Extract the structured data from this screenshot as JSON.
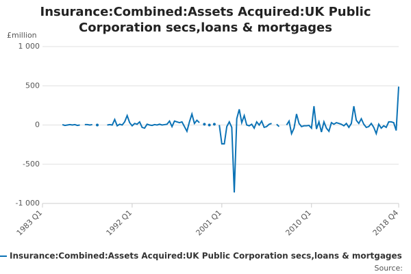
{
  "chart_data": {
    "type": "line",
    "title": "Insurance:Combined:Assets Acquired:UK Public Corporation secs,loans & mortgages",
    "y_label": "£million",
    "source": "Source:",
    "categories": [
      "1983 Q1",
      null,
      null,
      null,
      null,
      null,
      null,
      null,
      null,
      null,
      null,
      null,
      null,
      null,
      null,
      null,
      null,
      null,
      null,
      null,
      null,
      null,
      null,
      null,
      null,
      null,
      null,
      null,
      null,
      null,
      null,
      null,
      null,
      null,
      null,
      null,
      "1992 Q1",
      null,
      null,
      null,
      null,
      null,
      null,
      null,
      null,
      null,
      null,
      null,
      null,
      null,
      null,
      null,
      null,
      null,
      null,
      null,
      null,
      null,
      null,
      null,
      null,
      null,
      null,
      null,
      null,
      null,
      null,
      null,
      null,
      null,
      null,
      null,
      "2001 Q1",
      null,
      null,
      null,
      null,
      null,
      null,
      null,
      null,
      null,
      null,
      null,
      null,
      null,
      null,
      null,
      null,
      null,
      null,
      null,
      null,
      null,
      null,
      null,
      null,
      null,
      null,
      null,
      null,
      null,
      null,
      null,
      null,
      null,
      null,
      null,
      "2010 Q1",
      null,
      null,
      null,
      null,
      null,
      null,
      null,
      null,
      null,
      null,
      null,
      null,
      null,
      null,
      null,
      null,
      null,
      null,
      null,
      null,
      null,
      null,
      null,
      null,
      null,
      null,
      null,
      null,
      null,
      null,
      null,
      null,
      null,
      null,
      "2018 Q4"
    ],
    "series": [
      {
        "name": "Insurance:Combined:Assets Acquired:UK Public Corporation secs,loans & mortgages",
        "color": "#0b72b5",
        "values": [
          null,
          null,
          null,
          null,
          null,
          null,
          null,
          null,
          5,
          -5,
          0,
          5,
          0,
          5,
          -5,
          0,
          null,
          5,
          5,
          0,
          5,
          null,
          0,
          null,
          null,
          null,
          0,
          5,
          0,
          70,
          -10,
          10,
          0,
          40,
          120,
          30,
          -10,
          20,
          10,
          40,
          -30,
          -40,
          10,
          0,
          -5,
          5,
          0,
          10,
          0,
          5,
          10,
          50,
          -20,
          50,
          40,
          30,
          40,
          -20,
          -80,
          40,
          140,
          20,
          60,
          30,
          null,
          10,
          null,
          0,
          null,
          10,
          null,
          0,
          -240,
          -240,
          -20,
          40,
          -30,
          -860,
          80,
          200,
          30,
          120,
          0,
          -10,
          10,
          -40,
          40,
          0,
          50,
          -30,
          -20,
          10,
          20,
          null,
          10,
          -20,
          null,
          null,
          0,
          50,
          -110,
          -40,
          140,
          20,
          -20,
          -10,
          -10,
          -5,
          -40,
          240,
          -50,
          40,
          -90,
          40,
          -40,
          -80,
          30,
          10,
          30,
          20,
          10,
          -10,
          20,
          -30,
          20,
          240,
          60,
          20,
          80,
          10,
          -30,
          -20,
          20,
          -30,
          -110,
          10,
          -40,
          -10,
          -30,
          40,
          40,
          30,
          -70,
          490
        ]
      }
    ],
    "ylim": [
      -1000,
      1000
    ],
    "yticks": [
      {
        "value": -1000,
        "label": "-1 000"
      },
      -500,
      0,
      500,
      {
        "value": 1000,
        "label": "1 000"
      }
    ],
    "grid": true
  }
}
